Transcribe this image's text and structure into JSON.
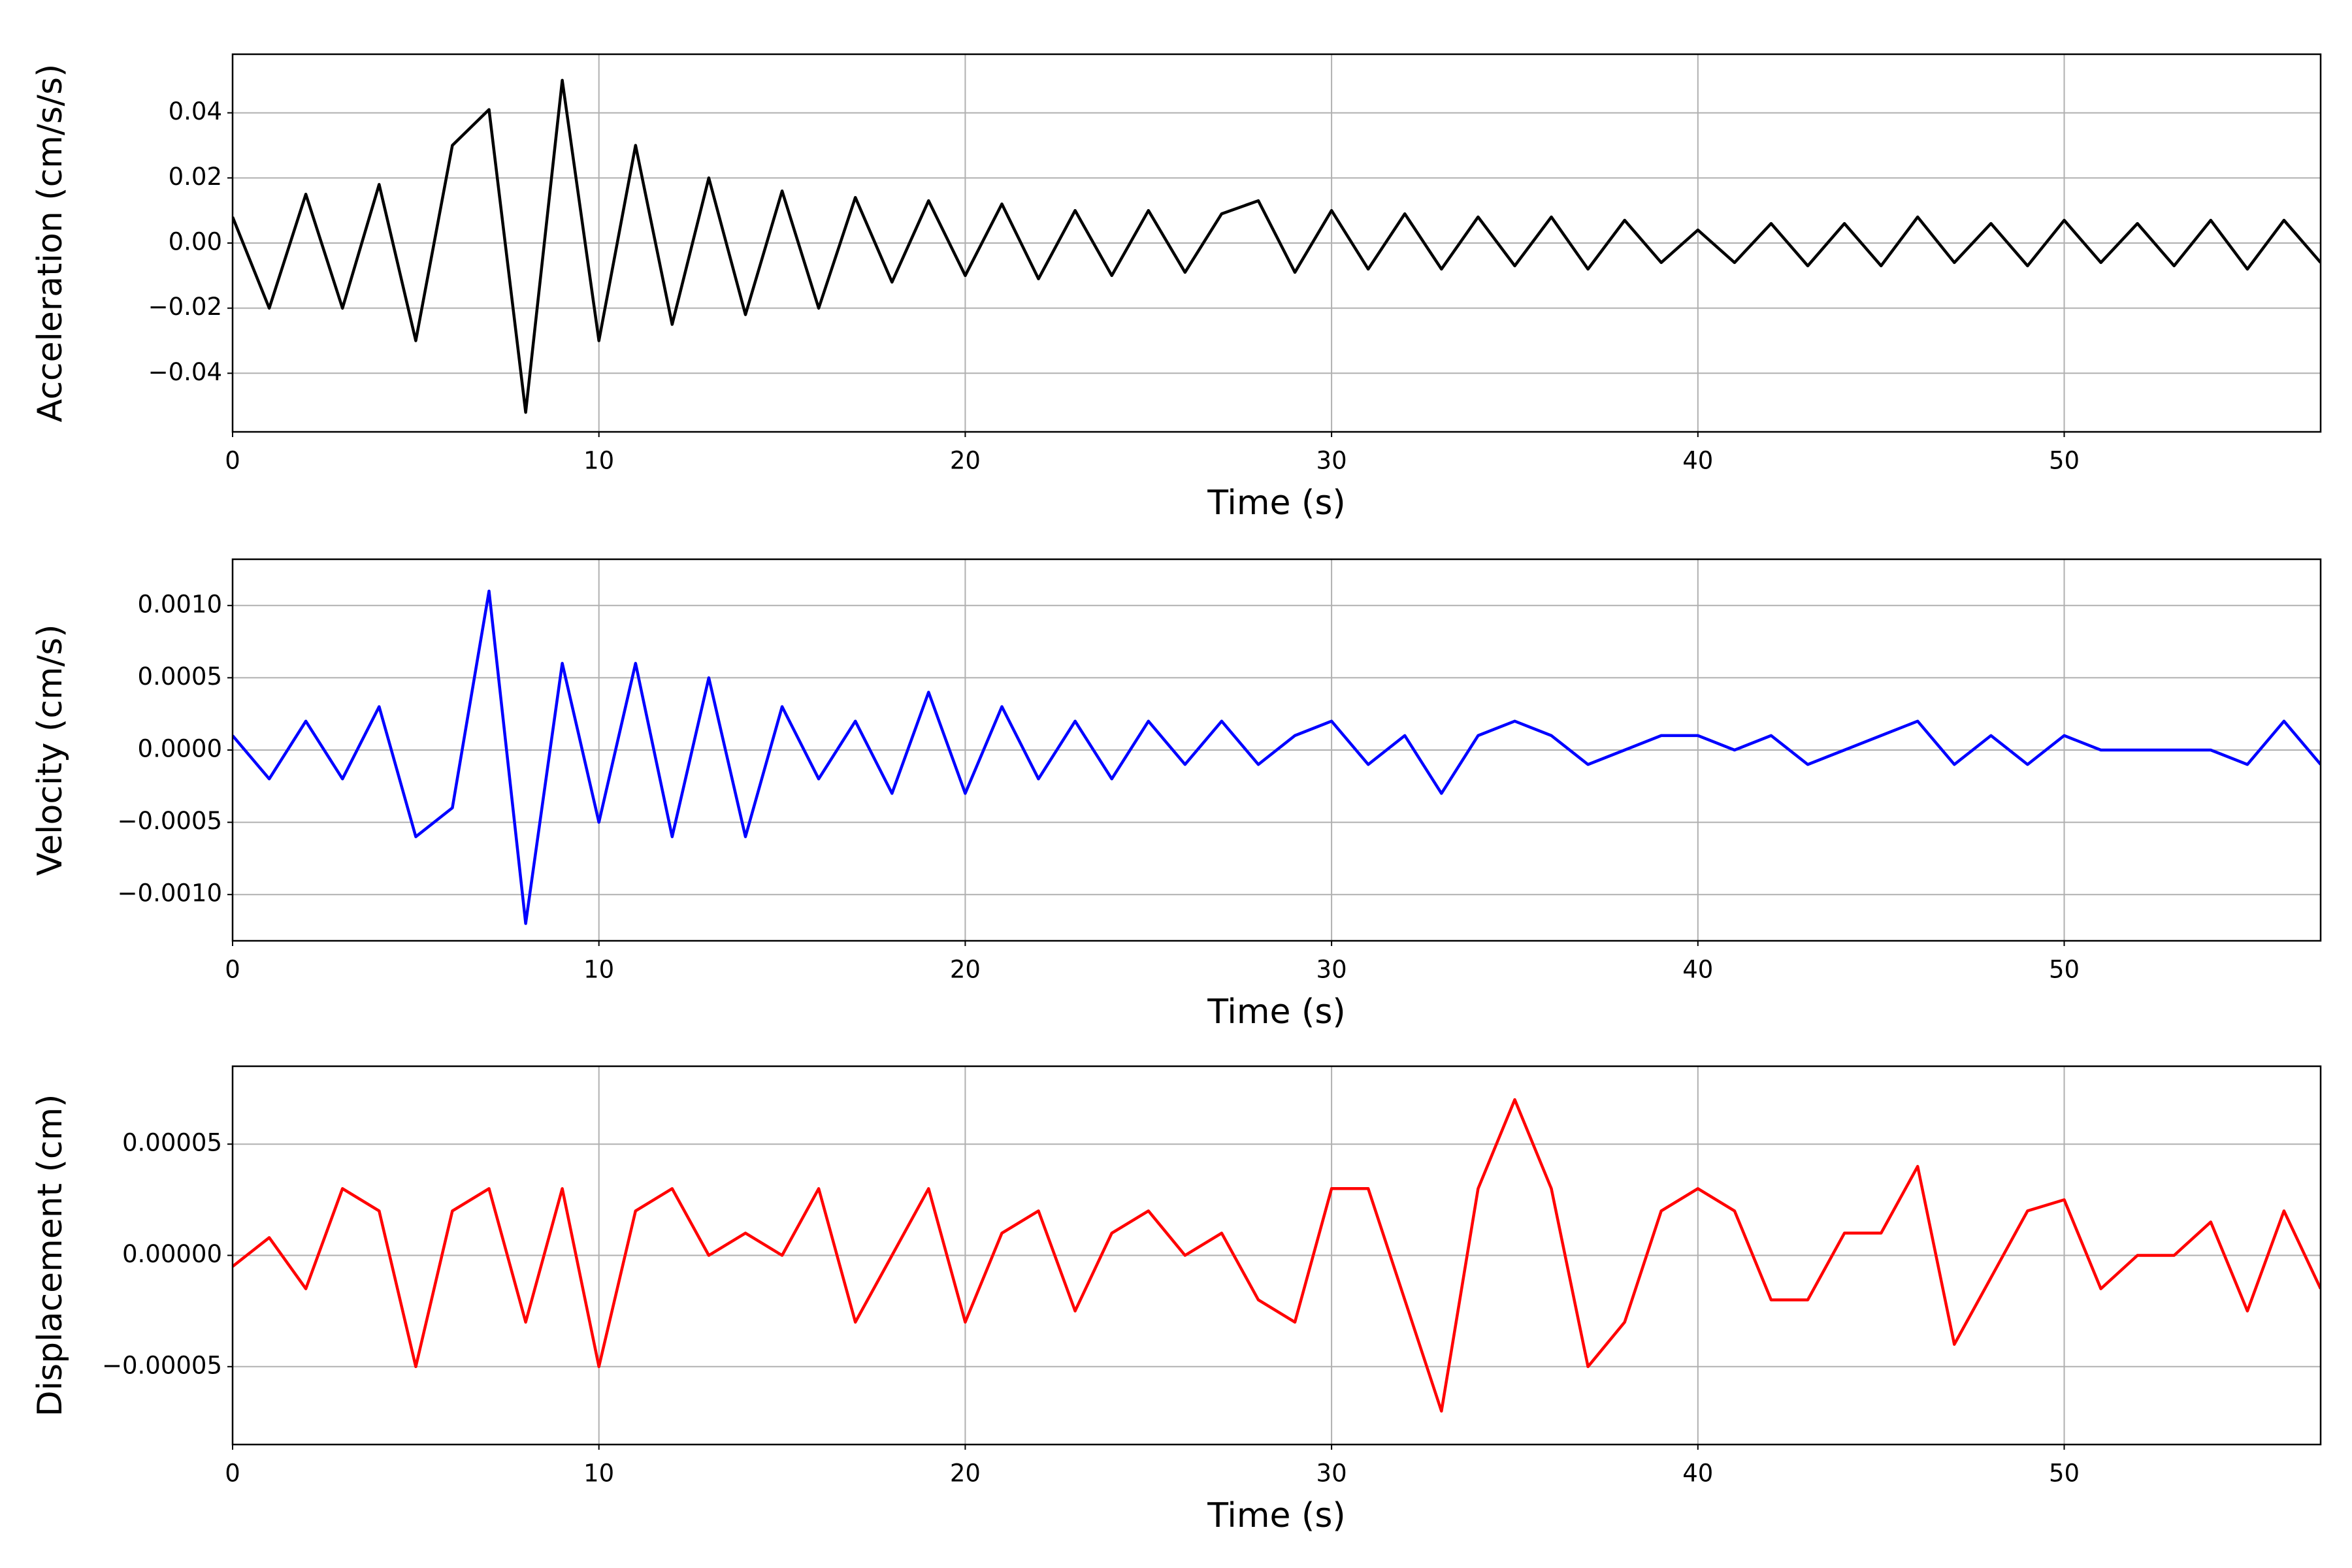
{
  "chart_data": [
    {
      "type": "line",
      "xlabel": "Time (s)",
      "ylabel": "Acceleration (cm/s/s)",
      "x": [
        0,
        1,
        2,
        3,
        4,
        5,
        6,
        7,
        8,
        9,
        10,
        11,
        12,
        13,
        14,
        15,
        16,
        17,
        18,
        19,
        20,
        21,
        22,
        23,
        24,
        25,
        26,
        27,
        28,
        29,
        30,
        31,
        32,
        33,
        34,
        35,
        36,
        37,
        38,
        39,
        40,
        41,
        42,
        43,
        44,
        45,
        46,
        47,
        48,
        49,
        50,
        51,
        52,
        53,
        54,
        55,
        56,
        57
      ],
      "color": "#000000",
      "values": [
        0.008,
        -0.02,
        0.015,
        -0.02,
        0.018,
        -0.03,
        0.03,
        0.041,
        -0.052,
        0.05,
        -0.03,
        0.03,
        -0.025,
        0.02,
        -0.022,
        0.016,
        -0.02,
        0.014,
        -0.012,
        0.013,
        -0.01,
        0.012,
        -0.011,
        0.01,
        -0.01,
        0.01,
        -0.009,
        0.009,
        0.013,
        -0.009,
        0.01,
        -0.008,
        0.009,
        -0.008,
        0.008,
        -0.007,
        0.008,
        -0.008,
        0.007,
        -0.006,
        0.004,
        -0.006,
        0.006,
        -0.007,
        0.006,
        -0.007,
        0.008,
        -0.006,
        0.006,
        -0.007,
        0.007,
        -0.006,
        0.006,
        -0.007,
        0.007,
        -0.008,
        0.007,
        -0.006
      ],
      "xlim": [
        0,
        57
      ],
      "xticks": [
        0,
        10,
        20,
        30,
        40,
        50
      ],
      "ylim": [
        -0.058,
        0.058
      ],
      "yticks": [
        {
          "value": -0.04,
          "label": "−0.04"
        },
        {
          "value": -0.02,
          "label": "−0.02"
        },
        {
          "value": 0,
          "label": "0.00"
        },
        {
          "value": 0.02,
          "label": "0.02"
        },
        {
          "value": 0.04,
          "label": "0.04"
        }
      ],
      "grid": true
    },
    {
      "type": "line",
      "xlabel": "Time (s)",
      "ylabel": "Velocity (cm/s)",
      "x": [
        0,
        1,
        2,
        3,
        4,
        5,
        6,
        7,
        8,
        9,
        10,
        11,
        12,
        13,
        14,
        15,
        16,
        17,
        18,
        19,
        20,
        21,
        22,
        23,
        24,
        25,
        26,
        27,
        28,
        29,
        30,
        31,
        32,
        33,
        34,
        35,
        36,
        37,
        38,
        39,
        40,
        41,
        42,
        43,
        44,
        45,
        46,
        47,
        48,
        49,
        50,
        51,
        52,
        53,
        54,
        55,
        56,
        57
      ],
      "color": "#0000ff",
      "values": [
        0.0001,
        -0.0002,
        0.0002,
        -0.0002,
        0.0003,
        -0.0006,
        -0.0004,
        0.0011,
        -0.0012,
        0.0006,
        -0.0005,
        0.0006,
        -0.0006,
        0.0005,
        -0.0006,
        0.0003,
        -0.0002,
        0.0002,
        -0.0003,
        0.0004,
        -0.0003,
        0.0003,
        -0.0002,
        0.0002,
        -0.0002,
        0.0002,
        -0.0001,
        0.0002,
        -0.0001,
        0.0001,
        0.0002,
        -0.0001,
        0.0001,
        -0.0003,
        0.0001,
        0.0002,
        0.0001,
        -0.0001,
        0,
        0.0001,
        0.0001,
        0,
        0.0001,
        -0.0001,
        0,
        0.0001,
        0.0002,
        -0.0001,
        0.0001,
        -0.0001,
        0.0001,
        0,
        0,
        0,
        0,
        -0.0001,
        0.0002,
        -0.0001
      ],
      "xlim": [
        0,
        57
      ],
      "xticks": [
        0,
        10,
        20,
        30,
        40,
        50
      ],
      "ylim": [
        -0.00132,
        0.00132
      ],
      "yticks": [
        {
          "value": -0.001,
          "label": "−0.0010"
        },
        {
          "value": -0.0005,
          "label": "−0.0005"
        },
        {
          "value": 0,
          "label": "0.0000"
        },
        {
          "value": 0.0005,
          "label": "0.0005"
        },
        {
          "value": 0.001,
          "label": "0.0010"
        }
      ],
      "grid": true
    },
    {
      "type": "line",
      "xlabel": "Time (s)",
      "ylabel": "Displacement (cm)",
      "x": [
        0,
        1,
        2,
        3,
        4,
        5,
        6,
        7,
        8,
        9,
        10,
        11,
        12,
        13,
        14,
        15,
        16,
        17,
        18,
        19,
        20,
        21,
        22,
        23,
        24,
        25,
        26,
        27,
        28,
        29,
        30,
        31,
        32,
        33,
        34,
        35,
        36,
        37,
        38,
        39,
        40,
        41,
        42,
        43,
        44,
        45,
        46,
        47,
        48,
        49,
        50,
        51,
        52,
        53,
        54,
        55,
        56,
        57
      ],
      "color": "#ff0000",
      "values": [
        -5e-06,
        8e-06,
        -1.5e-05,
        3e-05,
        2e-05,
        -5e-05,
        2e-05,
        3e-05,
        -3e-05,
        3e-05,
        -5e-05,
        2e-05,
        3e-05,
        0,
        1e-05,
        0,
        3e-05,
        -3e-05,
        0,
        3e-05,
        -3e-05,
        1e-05,
        2e-05,
        -2.5e-05,
        1e-05,
        2e-05,
        0,
        1e-05,
        -2e-05,
        -3e-05,
        3e-05,
        3e-05,
        -2e-05,
        -7e-05,
        3e-05,
        7e-05,
        3e-05,
        -5e-05,
        -3e-05,
        2e-05,
        3e-05,
        2e-05,
        -2e-05,
        -2e-05,
        1e-05,
        1e-05,
        4e-05,
        -4e-05,
        -1e-05,
        2e-05,
        2.5e-05,
        -1.5e-05,
        0,
        0,
        1.5e-05,
        -2.5e-05,
        2e-05,
        -1.5e-05
      ],
      "xlim": [
        0,
        57
      ],
      "xticks": [
        0,
        10,
        20,
        30,
        40,
        50
      ],
      "ylim": [
        -8.5e-05,
        8.5e-05
      ],
      "yticks": [
        {
          "value": -5e-05,
          "label": "−0.00005"
        },
        {
          "value": 0,
          "label": "0.00000"
        },
        {
          "value": 5e-05,
          "label": "0.00005"
        }
      ],
      "grid": true
    }
  ]
}
